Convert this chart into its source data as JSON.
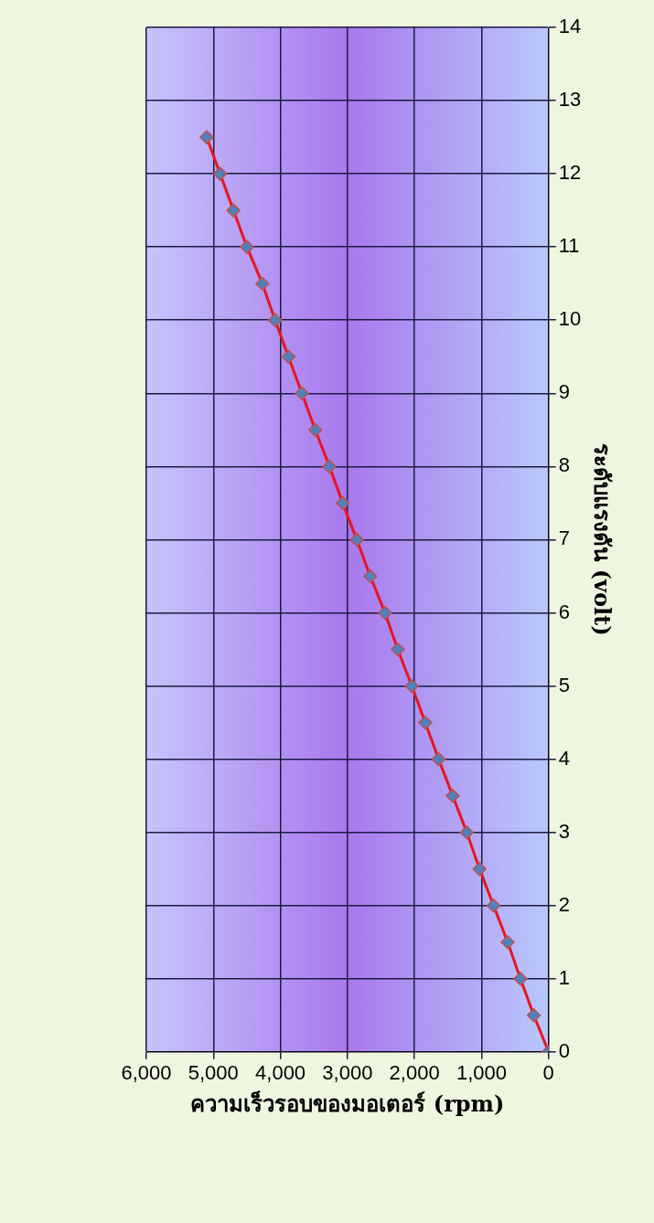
{
  "chart_data": {
    "type": "line",
    "xlabel": "ความเร็วรอบของมอเตอร์ (rpm)",
    "ylabel": "ระดับแรงดัน (volt)",
    "x": [
      0,
      220,
      420,
      610,
      820,
      1030,
      1220,
      1430,
      1640,
      1840,
      2040,
      2250,
      2440,
      2660,
      2860,
      3070,
      3270,
      3480,
      3680,
      3880,
      4080,
      4270,
      4500,
      4700,
      4900,
      5100
    ],
    "series": [
      {
        "color": "#e8141e",
        "values": [
          0,
          0.5,
          1,
          1.5,
          2,
          2.5,
          3,
          3.5,
          4,
          4.5,
          5,
          5.5,
          6,
          6.5,
          7,
          7.5,
          8,
          8.5,
          9,
          9.5,
          10,
          10.5,
          11,
          11.5,
          12,
          12.5
        ]
      }
    ],
    "ylim": [
      0,
      14
    ],
    "yticks": [
      0,
      1,
      2,
      3,
      4,
      5,
      6,
      7,
      8,
      9,
      10,
      11,
      12,
      13,
      14
    ],
    "xlim": [
      6000,
      0
    ],
    "xticks": [
      {
        "value": 6000,
        "label": "6,000"
      },
      {
        "value": 5000,
        "label": "5,000"
      },
      {
        "value": 4000,
        "label": "4,000"
      },
      {
        "value": 3000,
        "label": "3,000"
      },
      {
        "value": 2000,
        "label": "2,000"
      },
      {
        "value": 1000,
        "label": "1,000"
      },
      0
    ],
    "grid": true,
    "marker": "diamond",
    "line_style": "solid"
  }
}
